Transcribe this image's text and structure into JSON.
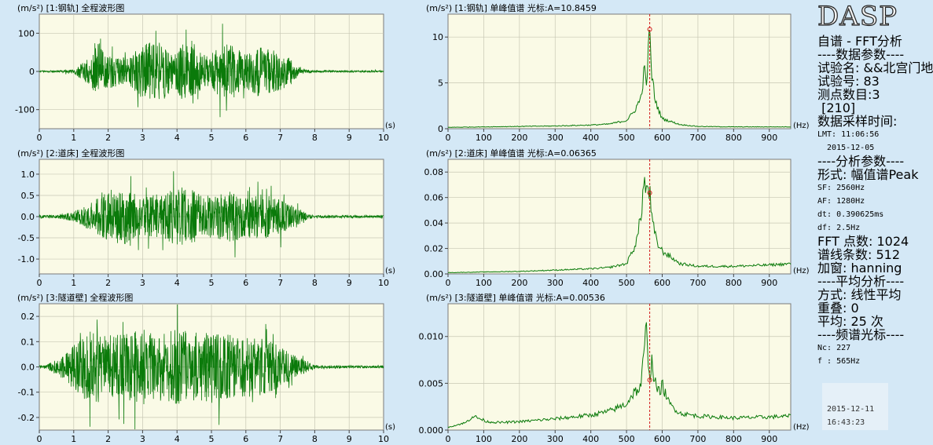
{
  "colors": {
    "background": "#d4e8f6",
    "plot_bg": "#fafae6",
    "grid": "#c7c7b4",
    "trace": "#0a7a0a",
    "cursor": "#d11a1a"
  },
  "chart_data": [
    {
      "type": "line",
      "title": "(m/s²) [1:钢轨] 全程波形图",
      "xunit": "(s)",
      "x_ticks": [
        "0",
        "1",
        "2",
        "3",
        "4",
        "5",
        "6",
        "7",
        "8",
        "9",
        "10"
      ],
      "y_ticks": [
        "100",
        "0",
        "-100"
      ],
      "xlim": [
        0,
        10
      ],
      "ylim": [
        -150,
        150
      ],
      "series": [
        {
          "x": [
            0.5,
            1.0,
            1.5,
            1.7,
            2.0,
            2.6,
            3.0,
            3.6,
            3.9,
            4.2,
            4.6,
            4.9,
            5.3,
            5.6,
            6.0,
            6.3,
            6.8,
            7.2,
            7.6,
            8.0,
            9.0,
            10.0
          ],
          "envelope": [
            3,
            8,
            52,
            105,
            60,
            45,
            100,
            102,
            55,
            112,
            75,
            50,
            95,
            100,
            60,
            90,
            75,
            55,
            8,
            3,
            3,
            3
          ]
        }
      ]
    },
    {
      "type": "line",
      "title": "(m/s²) [1:钢轨] 单峰值谱 光标:A=10.8459",
      "xunit": "(Hz)",
      "x_ticks": [
        "0",
        "100",
        "200",
        "300",
        "400",
        "500",
        "600",
        "700",
        "800",
        "900"
      ],
      "y_ticks": [
        "10",
        "5",
        "0"
      ],
      "xlim": [
        0,
        960
      ],
      "ylim": [
        0,
        12.5
      ],
      "cursor_x": 565,
      "cursor_y": 10.8459,
      "series": [
        {
          "x": [
            0,
            100,
            200,
            300,
            400,
            450,
            500,
            520,
            540,
            550,
            555,
            560,
            565,
            570,
            580,
            590,
            600,
            650,
            700,
            800,
            900,
            960
          ],
          "y": [
            0.15,
            0.2,
            0.25,
            0.3,
            0.4,
            0.5,
            0.9,
            1.8,
            3.3,
            6.5,
            4.7,
            7.5,
            10.85,
            6.0,
            3.2,
            2.0,
            1.1,
            0.45,
            0.25,
            0.2,
            0.2,
            0.2
          ]
        }
      ]
    },
    {
      "type": "line",
      "title": "(m/s²) [2:道床] 全程波形图",
      "xunit": "(s)",
      "x_ticks": [
        "0",
        "1",
        "2",
        "3",
        "4",
        "5",
        "6",
        "7",
        "8",
        "9",
        "10"
      ],
      "y_ticks": [
        "1.0",
        "0.5",
        "0.0",
        "-0.5",
        "-1.0"
      ],
      "xlim": [
        0,
        10
      ],
      "ylim": [
        -1.35,
        1.35
      ],
      "series": [
        {
          "x": [
            0.5,
            1.0,
            1.5,
            1.9,
            2.3,
            2.8,
            3.0,
            3.5,
            4.0,
            4.5,
            4.8,
            5.2,
            5.6,
            6.0,
            6.5,
            7.0,
            7.4,
            7.8,
            8.0,
            9.0,
            10.0
          ],
          "envelope": [
            0.05,
            0.15,
            0.45,
            0.75,
            0.95,
            0.7,
            0.6,
            0.72,
            0.9,
            0.85,
            0.65,
            0.7,
            0.8,
            0.65,
            0.7,
            0.55,
            0.35,
            0.08,
            0.04,
            0.04,
            0.04
          ]
        }
      ]
    },
    {
      "type": "line",
      "title": "(m/s²) [2:道床] 单峰值谱 光标:A=0.06365",
      "xunit": "(Hz)",
      "x_ticks": [
        "0",
        "100",
        "200",
        "300",
        "400",
        "500",
        "600",
        "700",
        "800",
        "900"
      ],
      "y_ticks": [
        "0.08",
        "0.06",
        "0.04",
        "0.02",
        "0.00"
      ],
      "xlim": [
        0,
        960
      ],
      "ylim": [
        0,
        0.09
      ],
      "cursor_x": 565,
      "cursor_y": 0.06365,
      "series": [
        {
          "x": [
            0,
            100,
            200,
            300,
            400,
            450,
            500,
            520,
            530,
            540,
            550,
            555,
            560,
            565,
            570,
            580,
            590,
            600,
            650,
            700,
            800,
            900,
            960
          ],
          "y": [
            0.001,
            0.0015,
            0.002,
            0.003,
            0.004,
            0.005,
            0.008,
            0.02,
            0.028,
            0.045,
            0.075,
            0.062,
            0.07,
            0.064,
            0.045,
            0.03,
            0.022,
            0.018,
            0.008,
            0.006,
            0.006,
            0.007,
            0.008
          ]
        }
      ]
    },
    {
      "type": "line",
      "title": "(m/s²) [3:隧道壁] 全程波形图",
      "xunit": "(s)",
      "x_ticks": [
        "0",
        "1",
        "2",
        "3",
        "4",
        "5",
        "6",
        "7",
        "8",
        "9",
        "10"
      ],
      "y_ticks": [
        "0.2",
        "0.1",
        "0.0",
        "-0.1",
        "-0.2"
      ],
      "xlim": [
        0,
        10
      ],
      "ylim": [
        -0.25,
        0.25
      ],
      "series": [
        {
          "x": [
            0.2,
            0.6,
            1.0,
            1.5,
            2.0,
            2.5,
            3.0,
            3.5,
            4.0,
            4.5,
            5.0,
            5.5,
            6.0,
            6.5,
            7.0,
            7.5,
            8.0,
            8.5,
            9.0,
            10.0
          ],
          "envelope": [
            0.01,
            0.05,
            0.12,
            0.2,
            0.17,
            0.18,
            0.2,
            0.17,
            0.2,
            0.18,
            0.19,
            0.17,
            0.16,
            0.15,
            0.11,
            0.05,
            0.01,
            0.008,
            0.006,
            0.006
          ]
        }
      ]
    },
    {
      "type": "line",
      "title": "(m/s²) [3:隧道壁] 单峰值谱 光标:A=0.00536",
      "xunit": "(Hz)",
      "x_ticks": [
        "0",
        "100",
        "200",
        "300",
        "400",
        "500",
        "600",
        "700",
        "800",
        "900"
      ],
      "y_ticks": [
        "0.010",
        "0.005",
        "0.000"
      ],
      "xlim": [
        0,
        960
      ],
      "ylim": [
        0,
        0.0135
      ],
      "cursor_x": 565,
      "cursor_y": 0.00536,
      "series": [
        {
          "x": [
            0,
            50,
            70,
            90,
            110,
            150,
            200,
            300,
            400,
            450,
            500,
            520,
            540,
            555,
            560,
            565,
            570,
            580,
            590,
            600,
            620,
            650,
            700,
            800,
            900,
            960
          ],
          "y": [
            0.0003,
            0.0008,
            0.0015,
            0.0012,
            0.0009,
            0.0008,
            0.0009,
            0.0012,
            0.0016,
            0.002,
            0.0028,
            0.004,
            0.0045,
            0.0107,
            0.0085,
            0.0054,
            0.0075,
            0.005,
            0.004,
            0.0048,
            0.0028,
            0.0018,
            0.0015,
            0.0013,
            0.0014,
            0.0015
          ]
        }
      ]
    }
  ],
  "side": {
    "logo": "DASP",
    "lines": [
      "自谱 - FFT分析",
      "----数据参数----",
      "试验名: &&北宫门地",
      "试验号: 83",
      "测点数目:3",
      " [210]",
      "数据采样时间:",
      "LMT: 11:06:56",
      "  2015-12-05",
      "----分析参数----",
      "形式: 幅值谱Peak",
      "SF: 2560Hz",
      "AF: 1280Hz",
      "dt: 0.390625ms",
      "df: 2.5Hz",
      "FFT 点数: 1024",
      "谱线条数: 512",
      "加窗: hanning",
      "----平均分析----",
      "方式: 线性平均",
      "重叠: 0",
      "平均: 25 次",
      "----频谱光标----",
      "Nc: 227",
      "f : 565Hz"
    ],
    "stamp_date": "2015-12-11",
    "stamp_time": "16:43:23"
  }
}
